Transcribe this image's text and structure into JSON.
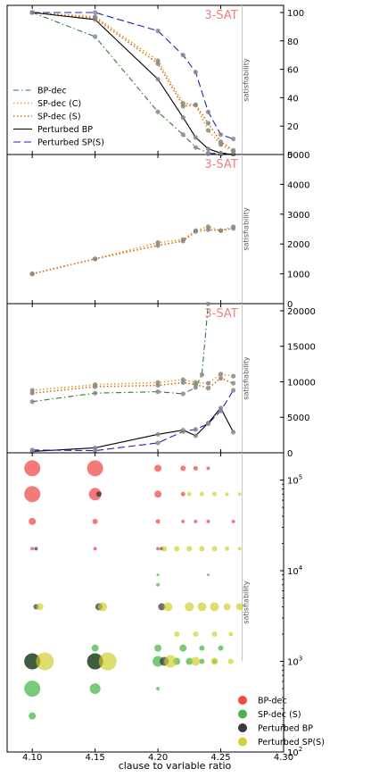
{
  "xaxis": {
    "label": "clause to variable ratio",
    "range": [
      4.08,
      4.3
    ],
    "ticks": [
      4.1,
      4.15,
      4.2,
      4.25,
      4.3
    ],
    "tick_labels": [
      "4.10",
      "4.15",
      "4.20",
      "4.25",
      "4.30"
    ]
  },
  "colors": {
    "bp_dec": "#2e7d2e",
    "sp_c": "#e6a020",
    "sp_s": "#d2691e",
    "pert_bp": "#000000",
    "pert_sp": "#2020c0",
    "title": "#f08080",
    "marker": "#888888",
    "bub_bp": "#ee3333",
    "bub_sp": "#33aa33",
    "bub_pbp": "#222222",
    "bub_psp": "#cccc22"
  },
  "chart_data": [
    {
      "type": "line",
      "title": "3-SAT",
      "ylabel": "satisfiability",
      "ylim": [
        0,
        105
      ],
      "yticks": [
        0,
        20,
        40,
        60,
        80,
        100
      ],
      "sat_line_x": 4.267,
      "legend": {
        "placement": "center-left",
        "entries": [
          "BP-dec",
          "SP-dec (C)",
          "SP-dec (S)",
          "Perturbed BP",
          "Perturbed SP(S)"
        ]
      },
      "series": [
        {
          "name": "BP-dec",
          "style": "dashdot",
          "color": "#2e7d2e",
          "x": [
            4.1,
            4.15,
            4.2,
            4.22,
            4.23,
            4.24,
            4.25,
            4.26
          ],
          "y": [
            100,
            83,
            30,
            14,
            5,
            1,
            0,
            0
          ]
        },
        {
          "name": "SP-dec (C)",
          "style": "dotted",
          "color": "#e6a020",
          "x": [
            4.1,
            4.15,
            4.2,
            4.22,
            4.23,
            4.24,
            4.25,
            4.26
          ],
          "y": [
            100,
            97,
            66,
            36,
            35,
            17,
            7,
            2
          ]
        },
        {
          "name": "SP-dec (S)",
          "style": "dotted",
          "color": "#d2691e",
          "x": [
            4.1,
            4.15,
            4.2,
            4.22,
            4.23,
            4.24,
            4.25,
            4.26
          ],
          "y": [
            100,
            96,
            64,
            34,
            35,
            22,
            9,
            3
          ]
        },
        {
          "name": "Perturbed BP",
          "style": "solid",
          "color": "#000000",
          "x": [
            4.1,
            4.15,
            4.2,
            4.22,
            4.23,
            4.24,
            4.25,
            4.26
          ],
          "y": [
            100,
            95,
            53,
            26,
            12,
            4,
            1,
            0
          ]
        },
        {
          "name": "Perturbed SP(S)",
          "style": "dashed",
          "color": "#2020c0",
          "x": [
            4.1,
            4.15,
            4.2,
            4.22,
            4.23,
            4.24,
            4.25,
            4.26
          ],
          "y": [
            100,
            100,
            87,
            70,
            58,
            30,
            14,
            11
          ]
        }
      ]
    },
    {
      "type": "line",
      "title": "3-SAT",
      "ylabel": "satisfiability",
      "ylim": [
        0,
        5000
      ],
      "yticks": [
        0,
        1000,
        2000,
        3000,
        4000,
        5000
      ],
      "series": [
        {
          "name": "SP-dec (C)",
          "style": "dotted",
          "color": "#e6a020",
          "x": [
            4.1,
            4.15,
            4.2,
            4.22,
            4.23,
            4.24,
            4.25,
            4.26
          ],
          "y": [
            1000,
            1500,
            2050,
            2150,
            2450,
            2580,
            2450,
            2580
          ]
        },
        {
          "name": "SP-dec (S)",
          "style": "dotted",
          "color": "#d2691e",
          "x": [
            4.1,
            4.15,
            4.2,
            4.22,
            4.23,
            4.24,
            4.25,
            4.26
          ],
          "y": [
            1000,
            1500,
            1950,
            2100,
            2420,
            2480,
            2450,
            2520
          ]
        },
        {
          "name": "Perturbed SP(S)",
          "style": "dashed",
          "color": "#2020c0",
          "x": [
            4.24,
            4.25,
            4.26
          ],
          "y": [
            5020,
            5050,
            5080
          ]
        }
      ]
    },
    {
      "type": "line",
      "title": "3-SAT",
      "ylabel": "satisfiability",
      "ylim": [
        0,
        21000
      ],
      "yticks": [
        0,
        5000,
        10000,
        15000,
        20000
      ],
      "series": [
        {
          "name": "BP-dec",
          "style": "dashdot",
          "color": "#2e7d2e",
          "x": [
            4.1,
            4.15,
            4.2,
            4.22,
            4.23,
            4.235,
            4.24
          ],
          "y": [
            7200,
            8400,
            8600,
            8300,
            9200,
            11000,
            21000
          ]
        },
        {
          "name": "SP-dec (C)",
          "style": "dotted",
          "color": "#e6a020",
          "x": [
            4.1,
            4.15,
            4.2,
            4.22,
            4.23,
            4.24,
            4.25,
            4.26
          ],
          "y": [
            8800,
            9600,
            9900,
            10300,
            9900,
            9800,
            11100,
            10800
          ]
        },
        {
          "name": "SP-dec (S)",
          "style": "dotted",
          "color": "#d2691e",
          "x": [
            4.1,
            4.15,
            4.2,
            4.22,
            4.23,
            4.24,
            4.25,
            4.26
          ],
          "y": [
            8400,
            9300,
            9500,
            9900,
            9600,
            9100,
            10500,
            9800
          ]
        },
        {
          "name": "Perturbed BP",
          "style": "solid",
          "color": "#000000",
          "x": [
            4.1,
            4.15,
            4.2,
            4.22,
            4.23,
            4.24,
            4.25,
            4.26
          ],
          "y": [
            200,
            700,
            2600,
            3200,
            2400,
            4200,
            6300,
            2900
          ]
        },
        {
          "name": "Perturbed SP(S)",
          "style": "dashed",
          "color": "#2020c0",
          "x": [
            4.1,
            4.15,
            4.2,
            4.22,
            4.23,
            4.24,
            4.25,
            4.26
          ],
          "y": [
            400,
            300,
            1400,
            3000,
            3300,
            4100,
            5900,
            8800
          ]
        }
      ]
    },
    {
      "type": "scatter",
      "ylabel": "satisfiability",
      "yscale": "log",
      "ylim": [
        100,
        200000
      ],
      "yticks": [
        100,
        1000,
        10000,
        100000
      ],
      "ytick_labels": [
        "10^2",
        "10^3",
        "10^4",
        "10^5"
      ],
      "legend": {
        "placement": "lower-right",
        "entries": [
          "BP-dec",
          "SP-dec (S)",
          "Perturbed BP",
          "Perturbed SP(S)"
        ]
      },
      "points": [
        {
          "s": "BP-dec",
          "x": 4.1,
          "y": 135000,
          "r": 9
        },
        {
          "s": "BP-dec",
          "x": 4.15,
          "y": 135000,
          "r": 9
        },
        {
          "s": "BP-dec",
          "x": 4.2,
          "y": 135000,
          "r": 4
        },
        {
          "s": "BP-dec",
          "x": 4.22,
          "y": 135000,
          "r": 3
        },
        {
          "s": "BP-dec",
          "x": 4.23,
          "y": 135000,
          "r": 2.5
        },
        {
          "s": "BP-dec",
          "x": 4.24,
          "y": 135000,
          "r": 2
        },
        {
          "s": "BP-dec",
          "x": 4.1,
          "y": 70000,
          "r": 9
        },
        {
          "s": "BP-dec",
          "x": 4.15,
          "y": 70000,
          "r": 7
        },
        {
          "s": "BP-dec",
          "x": 4.2,
          "y": 70000,
          "r": 4
        },
        {
          "s": "BP-dec",
          "x": 4.22,
          "y": 70000,
          "r": 2.5
        },
        {
          "s": "BP-dec",
          "x": 4.1,
          "y": 35000,
          "r": 4
        },
        {
          "s": "BP-dec",
          "x": 4.15,
          "y": 35000,
          "r": 3
        },
        {
          "s": "BP-dec",
          "x": 4.2,
          "y": 35000,
          "r": 2.5
        },
        {
          "s": "BP-dec",
          "x": 4.22,
          "y": 35000,
          "r": 2
        },
        {
          "s": "BP-dec",
          "x": 4.23,
          "y": 35000,
          "r": 2
        },
        {
          "s": "BP-dec",
          "x": 4.24,
          "y": 35000,
          "r": 2
        },
        {
          "s": "BP-dec",
          "x": 4.26,
          "y": 35000,
          "r": 2
        },
        {
          "s": "BP-dec",
          "x": 4.1,
          "y": 17500,
          "r": 2
        },
        {
          "s": "BP-dec",
          "x": 4.15,
          "y": 17500,
          "r": 2
        },
        {
          "s": "BP-dec",
          "x": 4.2,
          "y": 17500,
          "r": 2
        },
        {
          "s": "SP-dec (S)",
          "x": 4.1,
          "y": 1000,
          "r": 9
        },
        {
          "s": "SP-dec (S)",
          "x": 4.15,
          "y": 1000,
          "r": 9
        },
        {
          "s": "SP-dec (S)",
          "x": 4.2,
          "y": 1000,
          "r": 6
        },
        {
          "s": "SP-dec (S)",
          "x": 4.215,
          "y": 1000,
          "r": 4
        },
        {
          "s": "SP-dec (S)",
          "x": 4.225,
          "y": 1000,
          "r": 4
        },
        {
          "s": "SP-dec (S)",
          "x": 4.235,
          "y": 1000,
          "r": 3
        },
        {
          "s": "SP-dec (S)",
          "x": 4.245,
          "y": 1000,
          "r": 2.5
        },
        {
          "s": "SP-dec (S)",
          "x": 4.1,
          "y": 500,
          "r": 9
        },
        {
          "s": "SP-dec (S)",
          "x": 4.15,
          "y": 500,
          "r": 6
        },
        {
          "s": "SP-dec (S)",
          "x": 4.2,
          "y": 500,
          "r": 2
        },
        {
          "s": "SP-dec (S)",
          "x": 4.1,
          "y": 250,
          "r": 4
        },
        {
          "s": "SP-dec (S)",
          "x": 4.15,
          "y": 1400,
          "r": 4
        },
        {
          "s": "SP-dec (S)",
          "x": 4.2,
          "y": 1400,
          "r": 4
        },
        {
          "s": "SP-dec (S)",
          "x": 4.22,
          "y": 1400,
          "r": 4
        },
        {
          "s": "SP-dec (S)",
          "x": 4.235,
          "y": 1400,
          "r": 3
        },
        {
          "s": "SP-dec (S)",
          "x": 4.25,
          "y": 1400,
          "r": 3
        },
        {
          "s": "SP-dec (S)",
          "x": 4.2,
          "y": 7000,
          "r": 2
        },
        {
          "s": "SP-dec (S)",
          "x": 4.2,
          "y": 9000,
          "r": 1.5
        },
        {
          "s": "SP-dec (S)",
          "x": 4.24,
          "y": 9000,
          "r": 1.5
        },
        {
          "s": "Perturbed BP",
          "x": 4.1,
          "y": 1000,
          "r": 9
        },
        {
          "s": "Perturbed BP",
          "x": 4.15,
          "y": 1000,
          "r": 9
        },
        {
          "s": "Perturbed BP",
          "x": 4.205,
          "y": 1000,
          "r": 5
        },
        {
          "s": "Perturbed BP",
          "x": 4.153,
          "y": 70000,
          "r": 3
        },
        {
          "s": "Perturbed BP",
          "x": 4.103,
          "y": 17500,
          "r": 2
        },
        {
          "s": "Perturbed BP",
          "x": 4.153,
          "y": 4000,
          "r": 4
        },
        {
          "s": "Perturbed BP",
          "x": 4.103,
          "y": 4000,
          "r": 3
        },
        {
          "s": "Perturbed BP",
          "x": 4.203,
          "y": 4000,
          "r": 4
        },
        {
          "s": "Perturbed BP",
          "x": 4.203,
          "y": 17500,
          "r": 2
        },
        {
          "s": "Perturbed SP(S)",
          "x": 4.11,
          "y": 1000,
          "r": 10
        },
        {
          "s": "Perturbed SP(S)",
          "x": 4.16,
          "y": 1000,
          "r": 10
        },
        {
          "s": "Perturbed SP(S)",
          "x": 4.21,
          "y": 1000,
          "r": 7
        },
        {
          "s": "Perturbed SP(S)",
          "x": 4.23,
          "y": 1000,
          "r": 5
        },
        {
          "s": "Perturbed SP(S)",
          "x": 4.245,
          "y": 1000,
          "r": 4
        },
        {
          "s": "Perturbed SP(S)",
          "x": 4.258,
          "y": 1000,
          "r": 3
        },
        {
          "s": "Perturbed SP(S)",
          "x": 4.106,
          "y": 4000,
          "r": 4
        },
        {
          "s": "Perturbed SP(S)",
          "x": 4.156,
          "y": 4000,
          "r": 5
        },
        {
          "s": "Perturbed SP(S)",
          "x": 4.208,
          "y": 4000,
          "r": 5
        },
        {
          "s": "Perturbed SP(S)",
          "x": 4.225,
          "y": 4000,
          "r": 5
        },
        {
          "s": "Perturbed SP(S)",
          "x": 4.235,
          "y": 4000,
          "r": 5
        },
        {
          "s": "Perturbed SP(S)",
          "x": 4.245,
          "y": 4000,
          "r": 5
        },
        {
          "s": "Perturbed SP(S)",
          "x": 4.255,
          "y": 4000,
          "r": 4
        },
        {
          "s": "Perturbed SP(S)",
          "x": 4.265,
          "y": 4000,
          "r": 4
        },
        {
          "s": "Perturbed SP(S)",
          "x": 4.215,
          "y": 2000,
          "r": 3
        },
        {
          "s": "Perturbed SP(S)",
          "x": 4.23,
          "y": 2000,
          "r": 3
        },
        {
          "s": "Perturbed SP(S)",
          "x": 4.245,
          "y": 2000,
          "r": 3
        },
        {
          "s": "Perturbed SP(S)",
          "x": 4.258,
          "y": 2000,
          "r": 2.5
        },
        {
          "s": "Perturbed SP(S)",
          "x": 4.205,
          "y": 17500,
          "r": 3
        },
        {
          "s": "Perturbed SP(S)",
          "x": 4.215,
          "y": 17500,
          "r": 3
        },
        {
          "s": "Perturbed SP(S)",
          "x": 4.225,
          "y": 17500,
          "r": 3
        },
        {
          "s": "Perturbed SP(S)",
          "x": 4.235,
          "y": 17500,
          "r": 3
        },
        {
          "s": "Perturbed SP(S)",
          "x": 4.245,
          "y": 17500,
          "r": 3
        },
        {
          "s": "Perturbed SP(S)",
          "x": 4.255,
          "y": 17500,
          "r": 2.5
        },
        {
          "s": "Perturbed SP(S)",
          "x": 4.265,
          "y": 17500,
          "r": 2
        },
        {
          "s": "Perturbed SP(S)",
          "x": 4.225,
          "y": 70000,
          "r": 2.5
        },
        {
          "s": "Perturbed SP(S)",
          "x": 4.235,
          "y": 70000,
          "r": 2.5
        },
        {
          "s": "Perturbed SP(S)",
          "x": 4.245,
          "y": 70000,
          "r": 2.5
        },
        {
          "s": "Perturbed SP(S)",
          "x": 4.255,
          "y": 70000,
          "r": 2
        },
        {
          "s": "Perturbed SP(S)",
          "x": 4.265,
          "y": 70000,
          "r": 2
        }
      ]
    }
  ]
}
